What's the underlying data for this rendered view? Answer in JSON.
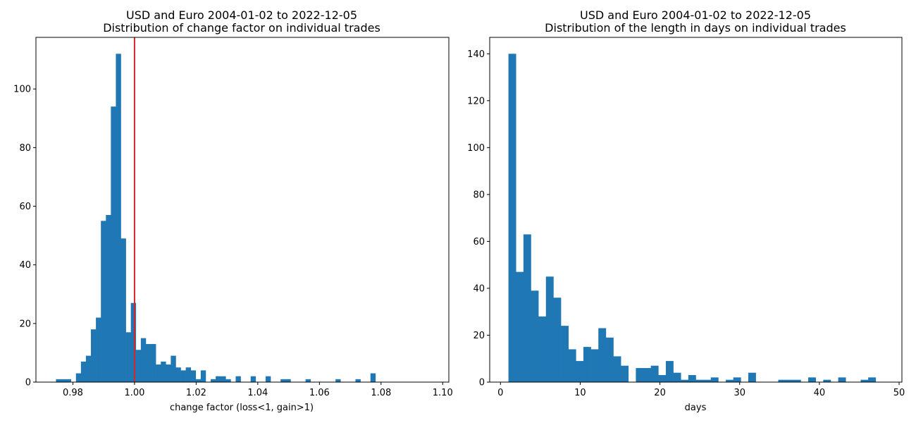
{
  "chart_data": [
    {
      "type": "bar",
      "title": "USD and Euro 2004-01-02 to 2022-12-05",
      "subtitle": "Distribution of change factor on individual trades",
      "xlabel": "change factor (loss<1, gain>1)",
      "ylabel": "",
      "xlim": [
        0.968,
        1.102
      ],
      "ylim": [
        0,
        117.6
      ],
      "xticks": [
        0.98,
        1.0,
        1.02,
        1.04,
        1.06,
        1.08,
        1.1
      ],
      "xtick_labels": [
        "0.98",
        "1.00",
        "1.02",
        "1.04",
        "1.06",
        "1.08",
        "1.10"
      ],
      "yticks": [
        0,
        20,
        40,
        60,
        80,
        100
      ],
      "ytick_labels": [
        "0",
        "20",
        "40",
        "60",
        "80",
        "100"
      ],
      "bin_start": 0.9745,
      "bin_width": 0.00162,
      "values": [
        1,
        1,
        1,
        0,
        3,
        7,
        9,
        18,
        22,
        55,
        57,
        94,
        112,
        49,
        17,
        27,
        11,
        15,
        13,
        13,
        6,
        7,
        6,
        9,
        5,
        4,
        5,
        4,
        1,
        4,
        0,
        1,
        2,
        2,
        1,
        0,
        2,
        0,
        0,
        2,
        0,
        0,
        2,
        0,
        0,
        1,
        1,
        0,
        0,
        0,
        1,
        0,
        0,
        0,
        0,
        0,
        1,
        0,
        0,
        0,
        1,
        0,
        0,
        3
      ],
      "bar_color": "#1f77b4",
      "reference_line": {
        "x": 1.0,
        "color": "#d62728"
      },
      "grid": false
    },
    {
      "type": "bar",
      "title": "USD and Euro 2004-01-02 to 2022-12-05",
      "subtitle": "Distribution of the length in days on individual trades",
      "xlabel": "days",
      "ylabel": "",
      "xlim": [
        -1.35,
        50.35
      ],
      "ylim": [
        0,
        147
      ],
      "xticks": [
        0,
        10,
        20,
        30,
        40,
        50
      ],
      "xtick_labels": [
        "0",
        "10",
        "20",
        "30",
        "40",
        "50"
      ],
      "yticks": [
        0,
        20,
        40,
        60,
        80,
        100,
        120,
        140
      ],
      "ytick_labels": [
        "0",
        "20",
        "40",
        "60",
        "80",
        "100",
        "120",
        "140"
      ],
      "bin_start": 1,
      "bin_width": 0.94,
      "values": [
        140,
        47,
        63,
        39,
        28,
        45,
        36,
        24,
        14,
        9,
        15,
        14,
        23,
        19,
        11,
        7,
        0,
        6,
        6,
        7,
        3,
        9,
        4,
        1,
        3,
        1,
        1,
        2,
        0,
        1,
        2,
        0,
        4,
        0,
        0,
        0,
        1,
        1,
        1,
        0,
        2,
        0,
        1,
        0,
        2,
        0,
        0,
        1,
        2,
        0
      ],
      "bar_color": "#1f77b4",
      "grid": false
    }
  ]
}
